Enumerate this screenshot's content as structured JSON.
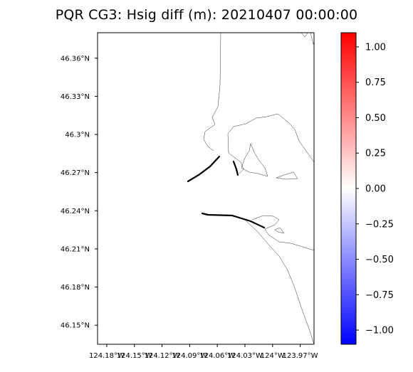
{
  "title": "PQR CG3: Hsig diff (m): 20210407 00:00:00",
  "map": {
    "lat_range": [
      46.135,
      46.38
    ],
    "lon_range": [
      -124.19,
      -123.955
    ],
    "lat_ticks": [
      {
        "value": 46.36,
        "label": "46.36°N"
      },
      {
        "value": 46.33,
        "label": "46.33°N"
      },
      {
        "value": 46.3,
        "label": "46.3°N"
      },
      {
        "value": 46.27,
        "label": "46.27°N"
      },
      {
        "value": 46.24,
        "label": "46.24°N"
      },
      {
        "value": 46.21,
        "label": "46.21°N"
      },
      {
        "value": 46.18,
        "label": "46.18°N"
      },
      {
        "value": 46.15,
        "label": "46.15°N"
      }
    ],
    "lon_ticks": [
      {
        "value": -124.18,
        "label": "124.18°W"
      },
      {
        "value": -124.15,
        "label": "124.15°W"
      },
      {
        "value": -124.12,
        "label": "124.12°W"
      },
      {
        "value": -124.09,
        "label": "124.09°W"
      },
      {
        "value": -124.06,
        "label": "124.06°W"
      },
      {
        "value": -124.03,
        "label": "124.03°W"
      },
      {
        "value": -124.0,
        "label": "124°W"
      },
      {
        "value": -123.97,
        "label": "123.97°W"
      }
    ]
  },
  "colorbar": {
    "colormap": "bwr",
    "min": -1.1,
    "max": 1.1,
    "colors": [
      "#0000ff",
      "#ffffff",
      "#ff0000"
    ],
    "ticks": [
      {
        "value": 1.0,
        "label": "1.00"
      },
      {
        "value": 0.75,
        "label": "0.75"
      },
      {
        "value": 0.5,
        "label": "0.50"
      },
      {
        "value": 0.25,
        "label": "0.25"
      },
      {
        "value": 0.0,
        "label": "0.00"
      },
      {
        "value": -0.25,
        "label": "−0.25"
      },
      {
        "value": -0.5,
        "label": "−0.50"
      },
      {
        "value": -0.75,
        "label": "−0.75"
      },
      {
        "value": -1.0,
        "label": "−1.00"
      }
    ]
  }
}
